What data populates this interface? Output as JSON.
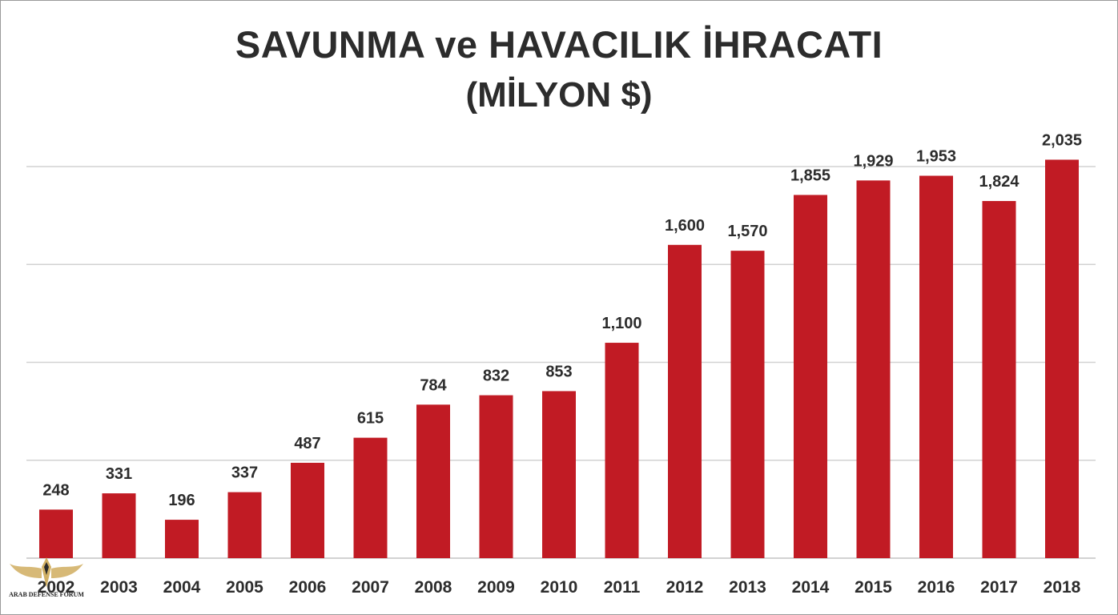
{
  "chart_data": {
    "type": "bar",
    "title": "SAVUNMA ve HAVACILIK İHRACATI",
    "subtitle": "(MİLYON $)",
    "categories": [
      "2002",
      "2003",
      "2004",
      "2005",
      "2006",
      "2007",
      "2008",
      "2009",
      "2010",
      "2011",
      "2012",
      "2013",
      "2014",
      "2015",
      "2016",
      "2017",
      "2018"
    ],
    "values": [
      248,
      331,
      196,
      337,
      487,
      615,
      784,
      832,
      853,
      1100,
      1600,
      1570,
      1855,
      1929,
      1953,
      1824,
      2035
    ],
    "value_labels": [
      "248",
      "331",
      "196",
      "337",
      "487",
      "615",
      "784",
      "832",
      "853",
      "1,100",
      "1,600",
      "1,570",
      "1,855",
      "1,929",
      "1,953",
      "1,824",
      "2,035"
    ],
    "ylim": [
      0,
      2000
    ],
    "grid": true,
    "bar_color": "#c11b24",
    "grid_color": "#d2d2d2"
  },
  "watermark": {
    "text": "ARAB DEFENSE FORUM"
  }
}
